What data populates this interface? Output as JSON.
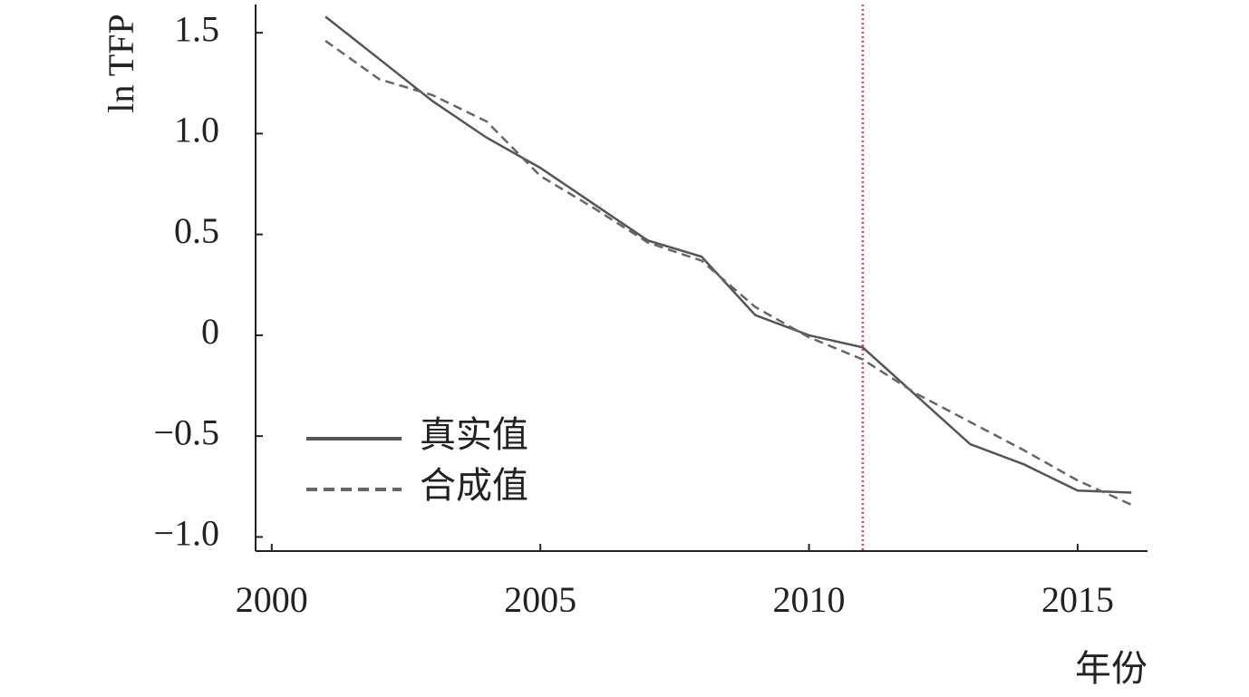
{
  "chart_data": {
    "type": "line",
    "x_label": "年份",
    "y_label": "ln TFP",
    "x": [
      2001,
      2002,
      2003,
      2004,
      2005,
      2006,
      2007,
      2008,
      2009,
      2010,
      2011,
      2012,
      2013,
      2014,
      2015,
      2016
    ],
    "series": [
      {
        "name": "真实值",
        "color": "#555555",
        "dash": "solid",
        "values": [
          1.58,
          1.37,
          1.16,
          0.98,
          0.83,
          0.65,
          0.47,
          0.39,
          0.1,
          0,
          -0.06,
          -0.3,
          -0.54,
          -0.64,
          -0.77,
          -0.78
        ]
      },
      {
        "name": "合成值",
        "color": "#666666",
        "dash": "dashed",
        "values": [
          1.46,
          1.27,
          1.19,
          1.06,
          0.79,
          0.63,
          0.46,
          0.37,
          0.14,
          -0.01,
          -0.12,
          -0.29,
          -0.43,
          -0.57,
          -0.72,
          -0.84
        ]
      }
    ],
    "vline": {
      "x": 2011,
      "color": "#e0435a"
    },
    "xlim": [
      1999.7,
      2016.3
    ],
    "xticks": [
      2000,
      2005,
      2010,
      2015
    ],
    "ylim": [
      -1.07,
      1.64
    ],
    "yticks": [
      {
        "value": -1,
        "label": "−1.0"
      },
      {
        "value": -0.5,
        "label": "−0.5"
      },
      0,
      0.5,
      {
        "value": 1,
        "label": "1.0"
      },
      1.5
    ],
    "legend": "lower left",
    "grid": false
  }
}
